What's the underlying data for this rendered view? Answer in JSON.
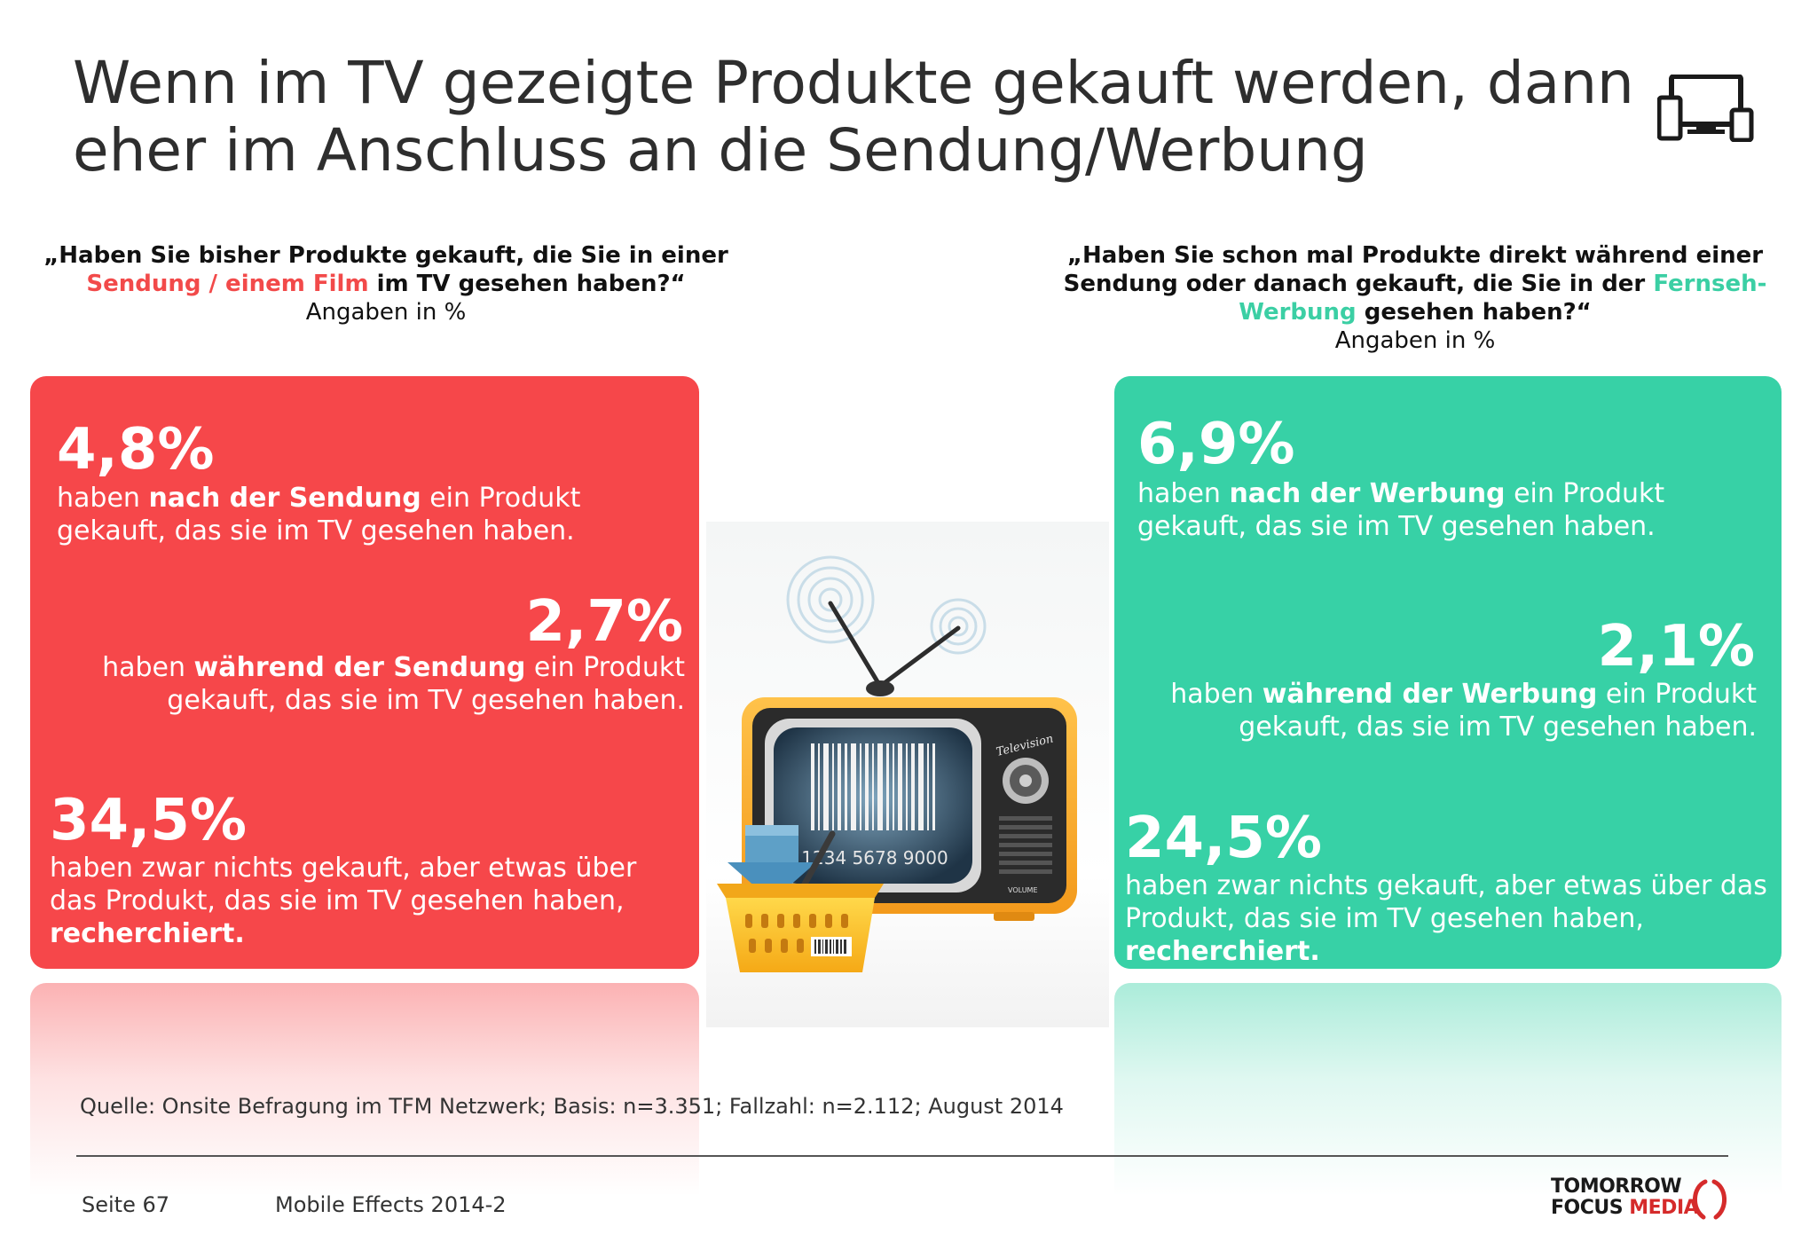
{
  "title": {
    "line1": "Wenn im TV gezeigte Produkte gekauft werden, dann",
    "line2": "eher im Anschluss an die Sendung/Werbung"
  },
  "left": {
    "question": {
      "line1": "„Haben Sie bisher Produkte gekauft, die Sie in einer",
      "highlight": "Sendung / einem Film",
      "line2_rest": " im TV gesehen haben?“",
      "unit": "Angaben in %"
    },
    "stat1": {
      "value": "4,8%",
      "pre": "haben ",
      "bold": "nach der Sendung",
      "post": " ein Produkt",
      "line2": "gekauft, das sie im TV gesehen haben."
    },
    "stat2": {
      "value": "2,7%",
      "pre": "haben ",
      "bold": "während der Sendung",
      "post": " ein Produkt",
      "line2": "gekauft, das sie im TV gesehen haben."
    },
    "stat3": {
      "value": "34,5%",
      "line1": "haben zwar nichts gekauft, aber etwas über",
      "line2": "das Produkt, das sie im TV gesehen haben,",
      "bold": "recherchiert."
    },
    "color": "#f6474a"
  },
  "right": {
    "question": {
      "line1": "„Haben Sie schon mal Produkte direkt während einer",
      "line2_pre": "Sendung oder danach gekauft, die Sie in der ",
      "highlight_a": "Fernseh-",
      "highlight_b": "Werbung",
      "line3_rest": " gesehen haben?“",
      "unit": "Angaben in %"
    },
    "stat1": {
      "value": "6,9%",
      "pre": "haben ",
      "bold": "nach der Werbung",
      "post": " ein Produkt",
      "line2": "gekauft, das sie im TV gesehen haben."
    },
    "stat2": {
      "value": "2,1%",
      "pre": "haben ",
      "bold": "während der Werbung",
      "post": " ein Produkt",
      "line2": "gekauft, das sie im TV gesehen haben."
    },
    "stat3": {
      "value": "24,5%",
      "line1": "haben zwar nichts gekauft, aber etwas über das",
      "line2": "Produkt, das sie im TV gesehen haben,",
      "bold": "recherchiert."
    },
    "color": "#37d1a6"
  },
  "illustration": {
    "barcode_number": "1234 5678 9000",
    "tv_brand": "Television",
    "volume_label": "VOLUME",
    "icons": [
      "tv-icon",
      "shopping-basket-icon",
      "download-arrow-icon",
      "barcode-icon"
    ]
  },
  "footer": {
    "source": "Quelle: Onsite Befragung im TFM Netzwerk; Basis: n=3.351; Fallzahl: n=2.112; August 2014",
    "page": "Seite 67",
    "document": "Mobile Effects 2014-2",
    "logo_line1": "TOMORROW",
    "logo_focus": "FOCUS",
    "logo_media": "MEDIA"
  },
  "icons": {
    "header_icon": "multi-device-icon"
  }
}
